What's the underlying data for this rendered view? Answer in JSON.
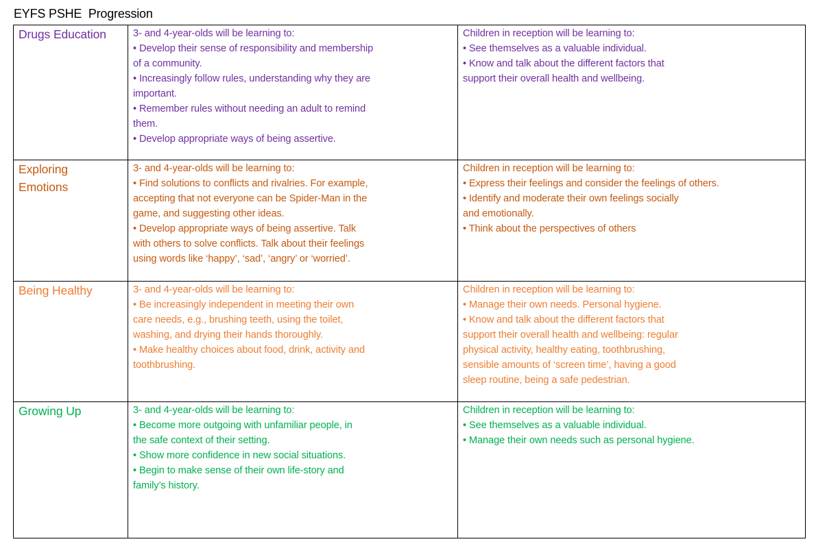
{
  "title": "EYFS PSHE  Progression",
  "rows": [
    {
      "category": "Drugs Education",
      "color": "#7030a0",
      "preschool": [
        "3- and 4-year-olds will be learning to:",
        "• Develop their sense of responsibility and membership",
        "of a community.",
        "• Increasingly follow rules, understanding why they are",
        "important.",
        "• Remember rules without needing an adult to remind",
        "them.",
        "• Develop appropriate ways of being assertive."
      ],
      "reception": [
        "Children in reception will be learning to:",
        "• See themselves as a valuable individual.",
        "• Know and talk about the different factors that",
        "support their overall health and wellbeing."
      ]
    },
    {
      "category": "Exploring\nEmotions",
      "color": "#c55a11",
      "preschool": [
        "3- and 4-year-olds will be learning to:",
        "• Find solutions to conflicts and rivalries. For example,",
        "accepting that not everyone can be Spider-Man in the",
        "game, and suggesting other ideas.",
        "• Develop appropriate ways of being assertive. Talk",
        "with others to solve conflicts. Talk about their feelings",
        "using words like ‘happy’, ‘sad’, ‘angry’ or ‘worried’."
      ],
      "reception": [
        "Children in reception will be learning to:",
        "• Express their feelings and consider the feelings of others.",
        "• Identify and moderate their own feelings socially",
        "and emotionally.",
        "• Think about the perspectives of others"
      ]
    },
    {
      "category": "Being Healthy",
      "color": "#ed7d31",
      "preschool": [
        "3- and 4-year-olds will be learning to:",
        "• Be increasingly independent in meeting their own",
        "care needs, e.g., brushing teeth, using the toilet,",
        "washing, and drying their hands thoroughly.",
        "• Make healthy choices about food, drink, activity and",
        "toothbrushing."
      ],
      "reception": [
        "Children in reception will be learning to:",
        "• Manage their own needs. Personal hygiene.",
        "• Know and talk about the different factors that",
        "support their overall health and wellbeing: regular",
        "physical activity, healthy eating, toothbrushing,",
        "sensible amounts of ‘screen time’, having a good",
        "sleep routine, being a safe pedestrian."
      ]
    },
    {
      "category": "Growing Up",
      "color": "#00b050",
      "preschool": [
        "3- and 4-year-olds will be learning to:",
        "• Become more outgoing with unfamiliar people, in",
        "the safe context of their setting.",
        "• Show more confidence in new social situations.",
        "• Begin to make sense of their own life-story and",
        "family’s history."
      ],
      "reception": [
        "Children in reception will be learning to:",
        "• See themselves as a valuable individual.",
        "• Manage their own needs such as personal hygiene."
      ]
    }
  ]
}
